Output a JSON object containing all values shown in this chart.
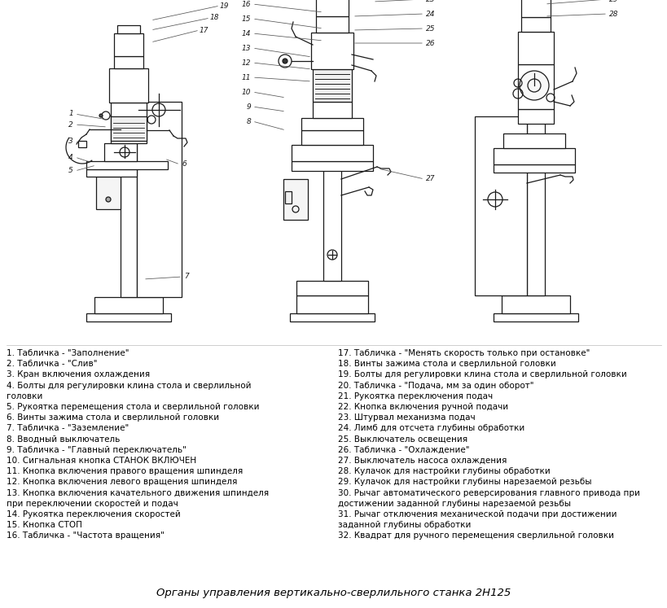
{
  "title": "Органы управления вертикально-сверлильного станка 2Н125",
  "bg": "#ffffff",
  "tc": "#000000",
  "left_labels": [
    "1. Табличка - \"Заполнение\"",
    "2. Табличка - \"Слив\"",
    "3. Кран включения охлаждения",
    "4. Болты для регулировки клина стола и сверлильной",
    "головки",
    "5. Рукоятка перемещения стола и сверлильной головки",
    "6. Винты зажима стола и сверлильной головки",
    "7. Табличка - \"Заземление\"",
    "8. Вводный выключатель",
    "9. Табличка - \"Главный переключатель\"",
    "10. Сигнальная кнопка СТАНОК ВКЛЮЧЕН",
    "11. Кнопка включения правого вращения шпинделя",
    "12. Кнопка включения левого вращения шпинделя",
    "13. Кнопка включения качательного движения шпинделя",
    "при переключении скоростей и подач",
    "14. Рукоятка переключения скоростей",
    "15. Кнопка СТОП",
    "16. Табличка - \"Частота вращения\""
  ],
  "right_labels": [
    "17. Табличка - \"Менять скорость только при остановке\"",
    "18. Винты зажима стола и сверлильной головки",
    "19. Болты для регулировки клина стола и сверлильной головки",
    "20. Табличка - \"Подача, мм за один оборот\"",
    "21. Рукоятка переключения подач",
    "22. Кнопка включения ручной подачи",
    "23. Штурвал механизма подач",
    "24. Лимб для отсчета глубины обработки",
    "25. Выключатель освещения",
    "26. Табличка - \"Охлаждение\"",
    "27. Выключатель насоса охлаждения",
    "28. Кулачок для настройки глубины обработки",
    "29. Кулачок для настройки глубины нарезаемой резьбы",
    "30. Рычаг автоматического реверсирования главного привода при",
    "достижении заданной глубины нарезаемой резьбы",
    "31. Рычаг отключения механической подачи при достижении",
    "заданной глубины обработки",
    "32. Квадрат для ручного перемещения сверлильной головки"
  ],
  "lfs": 7.5,
  "tfs": 9.5,
  "figw": 8.2,
  "figh": 7.47,
  "dpi": 100
}
